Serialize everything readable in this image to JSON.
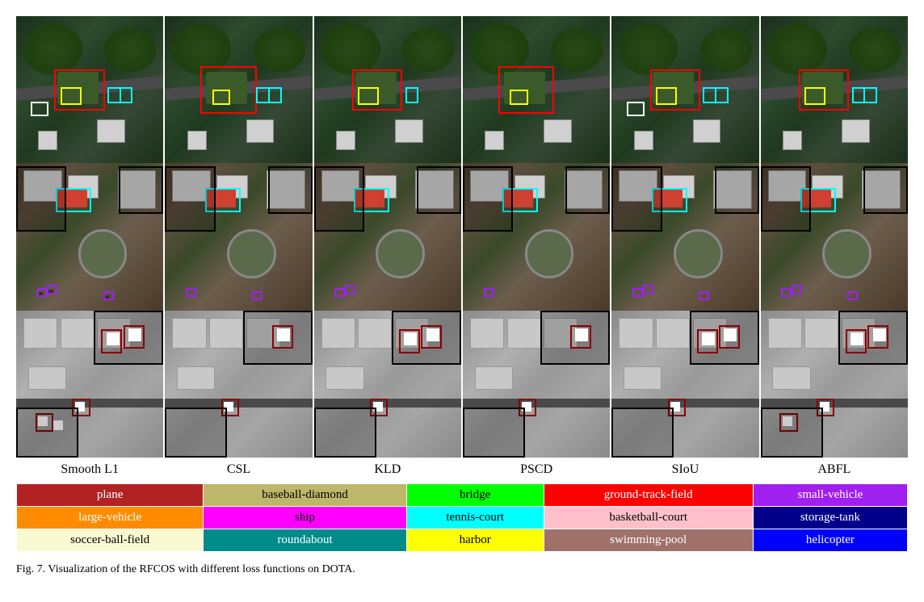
{
  "methods": [
    "Smooth L1",
    "CSL",
    "KLD",
    "PSCD",
    "SIoU",
    "ABFL"
  ],
  "legend": {
    "rows": [
      [
        {
          "label": "plane",
          "bg": "#b22222",
          "fg": "#ffffff"
        },
        {
          "label": "baseball-diamond",
          "bg": "#bdb76b",
          "fg": "#000000"
        },
        {
          "label": "bridge",
          "bg": "#00ff00",
          "fg": "#000000"
        },
        {
          "label": "ground-track-field",
          "bg": "#ff0000",
          "fg": "#ffffff"
        },
        {
          "label": "small-vehicle",
          "bg": "#a020f0",
          "fg": "#ffffff"
        }
      ],
      [
        {
          "label": "large-vehicle",
          "bg": "#ff8c00",
          "fg": "#ffffff"
        },
        {
          "label": "ship",
          "bg": "#ff00ff",
          "fg": "#000000"
        },
        {
          "label": "tennis-court",
          "bg": "#00ffff",
          "fg": "#000000"
        },
        {
          "label": "basketball-court",
          "bg": "#ffc0cb",
          "fg": "#000000"
        },
        {
          "label": "storage-tank",
          "bg": "#00008b",
          "fg": "#ffffff"
        }
      ],
      [
        {
          "label": "soccer-ball-field",
          "bg": "#fafad2",
          "fg": "#000000"
        },
        {
          "label": "roundabout",
          "bg": "#008b8b",
          "fg": "#ffffff"
        },
        {
          "label": "harbor",
          "bg": "#ffff00",
          "fg": "#000000"
        },
        {
          "label": "swimming-pool",
          "bg": "#a0706a",
          "fg": "#ffffff"
        },
        {
          "label": "helicopter",
          "bg": "#0000ff",
          "fg": "#ffffff"
        }
      ]
    ]
  },
  "caption": "Fig. 7.   Visualization of the RFCOS with different loss functions on DOTA.",
  "colors": {
    "bbox_red": "#ff0000",
    "bbox_cyan": "#00ffff",
    "bbox_yellow": "#ffff00",
    "bbox_purple": "#a020f0",
    "bbox_darkred": "#8b2020",
    "bbox_white": "#ffffff"
  }
}
